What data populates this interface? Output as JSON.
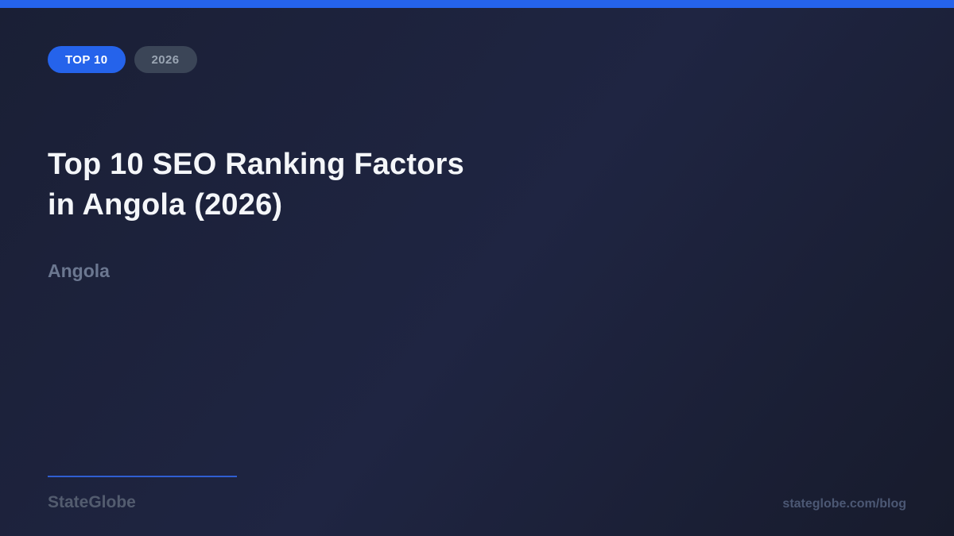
{
  "colors": {
    "accent": "#2563eb",
    "badge_muted_bg": "#3b4557",
    "badge_muted_text": "#9aa5b3",
    "title": "#f4f6f9",
    "subtitle": "#6b7790",
    "divider": "#2f5ed2",
    "brand": "#535c6f",
    "url": "#4c5874",
    "bg_base": "#1a1f35",
    "bg_light": "#1f2542",
    "bg_dark": "#171b2c"
  },
  "badges": [
    {
      "label": "TOP 10",
      "style": "primary"
    },
    {
      "label": "2026",
      "style": "muted"
    }
  ],
  "title": {
    "full": "Top 10 SEO Ranking Factors in Angola (2026)",
    "line1": "Top 10 SEO Ranking Factors",
    "line2": "in Angola (2026)"
  },
  "subtitle": "Angola",
  "footer": {
    "brand": "StateGlobe",
    "url": "stateglobe.com/blog"
  }
}
